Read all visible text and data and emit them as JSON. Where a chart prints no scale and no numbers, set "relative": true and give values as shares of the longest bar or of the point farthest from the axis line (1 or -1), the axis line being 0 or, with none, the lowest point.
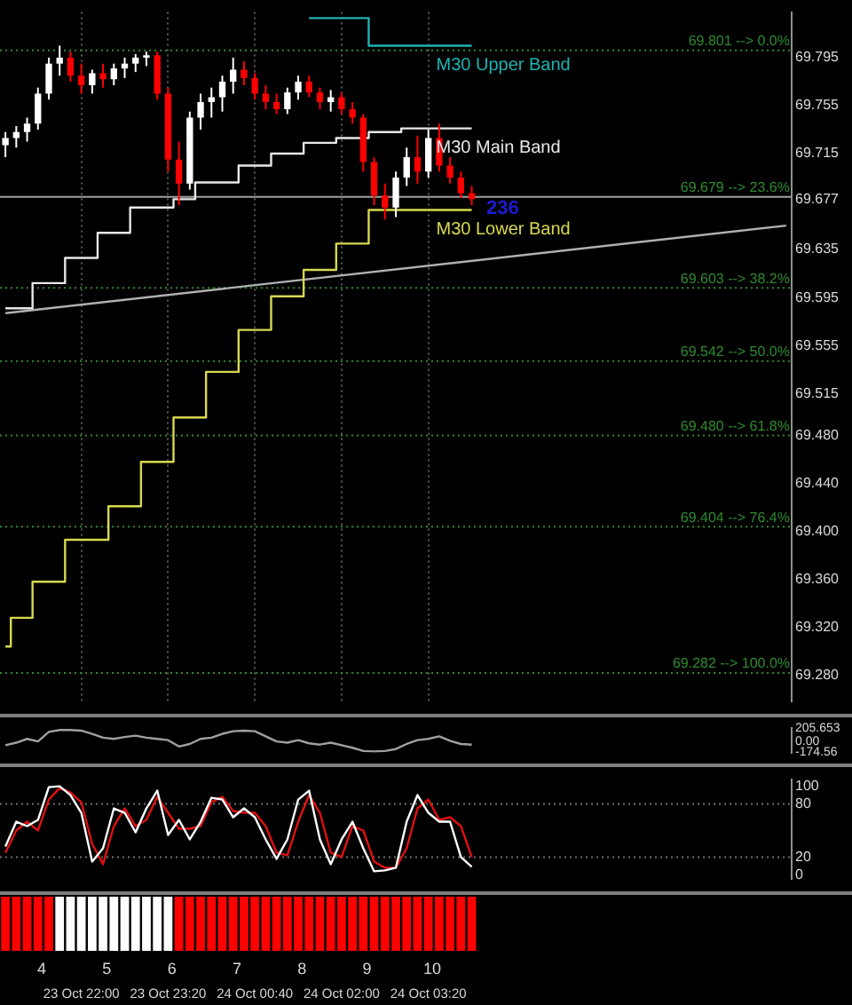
{
  "chart_data": [
    {
      "type": "candlestick",
      "tick_labels": "y",
      "legend": false,
      "grid": "x",
      "categories": [
        null,
        null,
        null,
        null,
        null,
        null,
        null,
        null,
        null,
        null,
        null,
        null,
        null,
        null,
        null,
        null,
        null,
        null,
        null,
        null,
        null,
        null,
        null,
        null,
        null,
        null,
        null,
        null,
        null,
        null,
        null,
        null,
        null,
        null,
        null,
        null,
        null,
        null,
        null,
        null,
        null,
        null,
        null,
        null,
        null,
        null,
        null,
        null,
        null,
        null,
        null,
        null,
        null,
        null,
        null,
        null,
        null,
        null,
        null,
        null,
        null,
        null,
        null,
        null,
        null,
        null,
        null,
        null,
        null,
        null,
        null,
        null,
        null
      ],
      "ohlc": [
        [
          69.722,
          69.733,
          69.712,
          69.728
        ],
        [
          69.728,
          69.738,
          69.72,
          69.733
        ],
        [
          69.733,
          69.745,
          69.725,
          69.74
        ],
        [
          69.74,
          69.77,
          69.735,
          69.765
        ],
        [
          69.765,
          69.795,
          69.76,
          69.79
        ],
        [
          69.79,
          69.805,
          69.78,
          69.795
        ],
        [
          69.795,
          69.8,
          69.775,
          69.78
        ],
        [
          69.78,
          69.79,
          69.765,
          69.772
        ],
        [
          69.772,
          69.785,
          69.765,
          69.782
        ],
        [
          69.782,
          69.79,
          69.77,
          69.777
        ],
        [
          69.777,
          69.79,
          69.772,
          69.786
        ],
        [
          69.786,
          69.795,
          69.778,
          69.79
        ],
        [
          69.79,
          69.798,
          69.783,
          69.795
        ],
        [
          69.795,
          69.8,
          69.788,
          69.797
        ],
        [
          69.797,
          69.8,
          69.76,
          69.765
        ],
        [
          69.765,
          69.77,
          69.7,
          69.71
        ],
        [
          69.71,
          69.725,
          69.672,
          69.69
        ],
        [
          69.69,
          69.75,
          69.685,
          69.745
        ],
        [
          69.745,
          69.765,
          69.735,
          69.758
        ],
        [
          69.758,
          69.77,
          69.745,
          69.762
        ],
        [
          69.762,
          69.78,
          69.75,
          69.775
        ],
        [
          69.775,
          69.795,
          69.765,
          69.785
        ],
        [
          69.785,
          69.792,
          69.772,
          69.778
        ],
        [
          69.778,
          69.782,
          69.76,
          69.765
        ],
        [
          69.765,
          69.772,
          69.752,
          69.758
        ],
        [
          69.758,
          69.765,
          69.748,
          69.752
        ],
        [
          69.752,
          69.77,
          69.748,
          69.766
        ],
        [
          69.766,
          69.78,
          69.76,
          69.775
        ],
        [
          69.775,
          69.78,
          69.762,
          69.766
        ],
        [
          69.766,
          69.77,
          69.752,
          69.758
        ],
        [
          69.758,
          69.768,
          69.75,
          69.762
        ],
        [
          69.762,
          69.766,
          69.748,
          69.752
        ],
        [
          69.752,
          69.758,
          69.74,
          69.745
        ],
        [
          69.745,
          69.748,
          69.7,
          69.708
        ],
        [
          69.708,
          69.712,
          69.672,
          69.68
        ],
        [
          69.68,
          69.69,
          69.66,
          69.67
        ],
        [
          69.67,
          69.7,
          69.662,
          69.695
        ],
        [
          69.695,
          69.72,
          69.688,
          69.712
        ],
        [
          69.712,
          69.73,
          69.69,
          69.7
        ],
        [
          69.7,
          69.735,
          69.695,
          69.728
        ],
        [
          69.728,
          69.74,
          69.7,
          69.705
        ],
        [
          69.705,
          69.712,
          69.69,
          69.695
        ],
        [
          69.695,
          69.7,
          69.678,
          69.682
        ],
        [
          69.682,
          69.688,
          69.672,
          69.677
        ],
        null,
        null,
        null,
        null,
        null,
        null,
        null,
        null,
        null,
        null,
        null,
        null,
        null,
        null,
        null,
        null,
        null,
        null,
        null,
        null,
        null,
        null,
        null,
        null,
        null,
        null,
        null,
        null,
        null
      ],
      "colors": [
        "#ffffff",
        "#ffffff",
        "#ffffff",
        "#ffffff",
        "#ffffff",
        "#ffffff",
        "#ff0000",
        "#ff0000",
        "#ffffff",
        "#ff0000",
        "#ffffff",
        "#ffffff",
        "#ffffff",
        "#ffffff",
        "#ff0000",
        "#ff0000",
        "#ff0000",
        "#ffffff",
        "#ffffff",
        "#ffffff",
        "#ffffff",
        "#ffffff",
        "#ff0000",
        "#ff0000",
        "#ff0000",
        "#ff0000",
        "#ffffff",
        "#ffffff",
        "#ff0000",
        "#ff0000",
        "#ffffff",
        "#ff0000",
        "#ff0000",
        "#ff0000",
        "#ff0000",
        "#ff0000",
        "#ffffff",
        "#ffffff",
        "#ff0000",
        "#ffffff",
        "#ff0000",
        "#ff0000",
        "#ff0000",
        "#ff0000",
        null,
        null,
        null,
        null,
        null,
        null,
        null,
        null,
        null,
        null,
        null,
        null,
        null,
        null,
        null,
        null,
        null,
        null,
        null,
        null,
        null,
        null,
        null,
        null,
        null,
        null,
        null,
        null,
        null
      ],
      "series": [
        {
          "type": "step",
          "name": "M30 Upper Band",
          "color": "#20b2b2",
          "values": [
            null,
            null,
            null,
            null,
            null,
            null,
            null,
            null,
            null,
            null,
            null,
            null,
            null,
            null,
            null,
            null,
            null,
            null,
            null,
            null,
            null,
            null,
            null,
            null,
            null,
            null,
            null,
            null,
            69.828,
            69.828,
            69.828,
            69.828,
            69.828,
            69.828,
            69.805,
            69.805,
            69.805,
            69.805,
            69.805,
            69.805,
            69.805,
            69.805,
            69.805,
            69.805,
            null,
            null,
            null,
            null,
            null,
            null,
            null,
            null,
            null,
            null,
            null,
            null,
            null,
            null,
            null,
            null,
            null,
            null,
            null,
            null,
            null,
            null,
            null,
            null,
            null,
            null,
            null,
            null,
            null
          ]
        },
        {
          "type": "step",
          "name": "M30 Main Band",
          "color": "#e8e8e8",
          "values": [
            69.586,
            69.586,
            69.586,
            69.607,
            69.607,
            69.607,
            69.628,
            69.628,
            69.628,
            69.649,
            69.649,
            69.649,
            69.67,
            69.67,
            69.67,
            69.67,
            69.677,
            69.677,
            69.691,
            69.691,
            69.691,
            69.691,
            69.705,
            69.705,
            69.705,
            69.715,
            69.715,
            69.715,
            69.724,
            69.724,
            69.724,
            69.728,
            69.728,
            69.728,
            69.733,
            69.733,
            69.733,
            69.736,
            69.736,
            69.736,
            69.736,
            69.736,
            69.736,
            69.736,
            null,
            null,
            null,
            null,
            null,
            null,
            null,
            null,
            null,
            null,
            null,
            null,
            null,
            null,
            null,
            null,
            null,
            null,
            null,
            null,
            null,
            null,
            null,
            null,
            null,
            null,
            null,
            null,
            null
          ]
        },
        {
          "type": "step",
          "name": "M30 Lower Band",
          "color": "#d8d850",
          "values": [
            69.304,
            69.328,
            69.328,
            69.358,
            69.358,
            69.358,
            69.393,
            69.393,
            69.393,
            69.393,
            69.421,
            69.421,
            69.421,
            69.458,
            69.458,
            69.458,
            69.495,
            69.495,
            69.495,
            69.533,
            69.533,
            69.533,
            69.568,
            69.568,
            69.568,
            69.596,
            69.596,
            69.596,
            69.618,
            69.618,
            69.618,
            69.64,
            69.64,
            69.64,
            69.668,
            69.668,
            69.668,
            69.668,
            69.668,
            69.668,
            69.668,
            69.668,
            69.668,
            69.668,
            null,
            null,
            null,
            null,
            null,
            null,
            null,
            null,
            null,
            null,
            null,
            null,
            null,
            null,
            null,
            null,
            null,
            null,
            null,
            null,
            null,
            null,
            null,
            null,
            null,
            null,
            null,
            null,
            null
          ]
        },
        {
          "type": "line",
          "color": "#b0b0b0",
          "values": [
            69.582,
            null,
            null,
            null,
            null,
            null,
            null,
            null,
            null,
            null,
            null,
            null,
            null,
            null,
            null,
            null,
            null,
            null,
            null,
            null,
            null,
            null,
            null,
            null,
            null,
            null,
            null,
            null,
            null,
            null,
            null,
            null,
            null,
            null,
            null,
            null,
            null,
            null,
            null,
            null,
            null,
            null,
            null,
            null,
            null,
            null,
            null,
            null,
            null,
            null,
            null,
            null,
            null,
            null,
            null,
            null,
            null,
            null,
            null,
            null,
            null,
            null,
            null,
            null,
            null,
            null,
            null,
            null,
            null,
            null,
            null,
            null,
            69.655
          ]
        }
      ],
      "ylim": [
        69.258,
        69.833
      ],
      "yticks": [
        69.795,
        69.755,
        69.715,
        69.677,
        69.635,
        69.595,
        69.555,
        69.515,
        {
          "value": 69.48,
          "label": "69.480"
        },
        {
          "value": 69.44,
          "label": "69.440"
        },
        {
          "value": 69.4,
          "label": "69.400"
        },
        {
          "value": 69.36,
          "label": "69.360"
        },
        {
          "value": 69.32,
          "label": "69.320"
        },
        {
          "value": 69.28,
          "label": "69.280"
        }
      ],
      "ref_lines": [
        {
          "axis": "y",
          "value": 69.801,
          "label": "69.801 --> 0.0%",
          "color": "#2e8b2e",
          "line_style": "dotted"
        },
        {
          "axis": "y",
          "value": 69.679,
          "label": "69.679 --> 23.6%",
          "color": "#a0a0a0",
          "line_style": "solid"
        },
        {
          "axis": "y",
          "value": 69.603,
          "label": "69.603 --> 38.2%",
          "color": "#2e8b2e",
          "line_style": "dotted"
        },
        {
          "axis": "y",
          "value": 69.542,
          "label": "69.542 --> 50.0%",
          "color": "#2e8b2e",
          "line_style": "dotted"
        },
        {
          "axis": "y",
          "value": 69.48,
          "label": "69.480 --> 61.8%",
          "color": "#2e8b2e",
          "line_style": "dotted"
        },
        {
          "axis": "y",
          "value": 69.404,
          "label": "69.404 --> 76.4%",
          "color": "#2e8b2e",
          "line_style": "dotted"
        },
        {
          "axis": "y",
          "value": 69.282,
          "label": "69.282 --> 100.0%",
          "color": "#2e8b2e",
          "line_style": "dotted"
        }
      ],
      "annotations": [
        "236"
      ]
    },
    {
      "type": "line",
      "tick_labels": "y",
      "legend": false,
      "marker": "none",
      "categories": [
        null,
        null,
        null,
        null,
        null,
        null,
        null,
        null,
        null,
        null,
        null,
        null,
        null,
        null,
        null,
        null,
        null,
        null,
        null,
        null,
        null,
        null,
        null,
        null,
        null,
        null,
        null,
        null,
        null,
        null,
        null,
        null,
        null,
        null,
        null,
        null,
        null,
        null,
        null,
        null,
        null,
        null,
        null,
        null,
        null,
        null,
        null,
        null,
        null,
        null,
        null,
        null,
        null,
        null,
        null,
        null,
        null,
        null,
        null,
        null,
        null,
        null,
        null,
        null,
        null,
        null,
        null,
        null,
        null,
        null,
        null,
        null,
        null
      ],
      "series": [
        {
          "color": "#a0a0a0",
          "values": [
            -60,
            -20,
            40,
            0,
            150,
            180,
            180,
            170,
            120,
            60,
            40,
            70,
            90,
            60,
            40,
            20,
            -80,
            -40,
            40,
            60,
            120,
            160,
            170,
            160,
            80,
            0,
            -20,
            20,
            -30,
            -50,
            -20,
            -60,
            -100,
            -150,
            -160,
            -150,
            -120,
            -40,
            20,
            40,
            80,
            10,
            -40,
            -50,
            null,
            null,
            null,
            null,
            null,
            null,
            null,
            null,
            null,
            null,
            null,
            null,
            null,
            null,
            null,
            null,
            null,
            null,
            null,
            null,
            null,
            null,
            null,
            null,
            null,
            null,
            null,
            null,
            null
          ]
        }
      ],
      "ylim": [
        -174.56,
        205.653
      ],
      "yticks": [
        205.653,
        {
          "value": 0,
          "label": "0.00"
        },
        -174.56
      ]
    },
    {
      "type": "line",
      "tick_labels": "y",
      "legend": false,
      "marker": "none",
      "categories": [
        null,
        null,
        null,
        null,
        null,
        null,
        null,
        null,
        null,
        null,
        null,
        null,
        null,
        null,
        null,
        null,
        null,
        null,
        null,
        null,
        null,
        null,
        null,
        null,
        null,
        null,
        null,
        null,
        null,
        null,
        null,
        null,
        null,
        null,
        null,
        null,
        null,
        null,
        null,
        null,
        null,
        null,
        null,
        null,
        null,
        null,
        null,
        null,
        null,
        null,
        null,
        null,
        null,
        null,
        null,
        null,
        null,
        null,
        null,
        null,
        null,
        null,
        null,
        null,
        null,
        null,
        null,
        null,
        null,
        null,
        null,
        null,
        null
      ],
      "series": [
        {
          "color": "#ffffff",
          "values": [
            32,
            60,
            55,
            62,
            99,
            100,
            90,
            70,
            15,
            30,
            75,
            70,
            48,
            75,
            95,
            45,
            62,
            40,
            60,
            87,
            85,
            65,
            75,
            65,
            40,
            18,
            40,
            85,
            95,
            40,
            12,
            40,
            60,
            30,
            4,
            5,
            8,
            60,
            90,
            70,
            60,
            60,
            20,
            9,
            null,
            null,
            null,
            null,
            null,
            null,
            null,
            null,
            null,
            null,
            null,
            null,
            null,
            null,
            null,
            null,
            null,
            null,
            null,
            null,
            null,
            null,
            null,
            null,
            null,
            null,
            null,
            null,
            null
          ]
        },
        {
          "color": "#e01010",
          "values": [
            25,
            50,
            60,
            50,
            85,
            98,
            93,
            82,
            35,
            12,
            55,
            75,
            55,
            62,
            88,
            70,
            52,
            52,
            55,
            82,
            88,
            72,
            70,
            70,
            55,
            25,
            22,
            60,
            90,
            70,
            25,
            20,
            55,
            50,
            15,
            8,
            8,
            30,
            75,
            85,
            62,
            65,
            55,
            20,
            null,
            null,
            null,
            null,
            null,
            null,
            null,
            null,
            null,
            null,
            null,
            null,
            null,
            null,
            null,
            null,
            null,
            null,
            null,
            null,
            null,
            null,
            null,
            null,
            null,
            null,
            null,
            null,
            null
          ]
        }
      ],
      "ylim": [
        -5,
        108
      ],
      "yticks": [
        100,
        80,
        20,
        0
      ],
      "ref_lines": [
        {
          "axis": "y",
          "value": 80,
          "color": "#707070",
          "line_style": "dotted"
        },
        {
          "axis": "y",
          "value": 20,
          "color": "#707070",
          "line_style": "dotted"
        }
      ]
    },
    {
      "type": "bar",
      "relative": true,
      "legend": false,
      "tick_labels": "x",
      "categories": [
        null,
        null,
        null,
        null,
        null,
        null,
        null,
        "23 Oct 22:00",
        null,
        null,
        null,
        null,
        null,
        null,
        null,
        "23 Oct 23:20",
        null,
        null,
        null,
        null,
        null,
        null,
        null,
        "24 Oct 00:40",
        null,
        null,
        null,
        null,
        null,
        null,
        null,
        "24 Oct 02:00",
        null,
        null,
        null,
        null,
        null,
        null,
        null,
        "24 Oct 03:20",
        null,
        null,
        null,
        null,
        null,
        null,
        null,
        null,
        null,
        null,
        null,
        null,
        null,
        null,
        null,
        null,
        null,
        null,
        null,
        null,
        null,
        null,
        null,
        null,
        null,
        null,
        null,
        null,
        null,
        null,
        null,
        null,
        null
      ],
      "values": [
        1,
        1,
        1,
        1,
        1,
        1,
        1,
        1,
        1,
        1,
        1,
        1,
        1,
        1,
        1,
        1,
        1,
        1,
        1,
        1,
        1,
        1,
        1,
        1,
        1,
        1,
        1,
        1,
        1,
        1,
        1,
        1,
        1,
        1,
        1,
        1,
        1,
        1,
        1,
        1,
        1,
        1,
        1,
        1,
        null,
        null,
        null,
        null,
        null,
        null,
        null,
        null,
        null,
        null,
        null,
        null,
        null,
        null,
        null,
        null,
        null,
        null,
        null,
        null,
        null,
        null,
        null,
        null,
        null,
        null,
        null,
        null,
        null
      ],
      "colors": [
        "#ff0000",
        "#ff0000",
        "#ff0000",
        "#ff0000",
        "#ff0000",
        "#ffffff",
        "#ffffff",
        "#ffffff",
        "#ffffff",
        "#ffffff",
        "#ffffff",
        "#ffffff",
        "#ffffff",
        "#ffffff",
        "#ffffff",
        "#ffffff",
        "#ff0000",
        "#ff0000",
        "#ff0000",
        "#ff0000",
        "#ff0000",
        "#ff0000",
        "#ff0000",
        "#ff0000",
        "#ff0000",
        "#ff0000",
        "#ff0000",
        "#ff0000",
        "#ff0000",
        "#ff0000",
        "#ff0000",
        "#ff0000",
        "#ff0000",
        "#ff0000",
        "#ff0000",
        "#ff0000",
        "#ff0000",
        "#ff0000",
        "#ff0000",
        "#ff0000",
        "#ff0000",
        "#ff0000",
        "#ff0000",
        "#ff0000",
        null,
        null,
        null,
        null,
        null,
        null,
        null,
        null,
        null,
        null,
        null,
        null,
        null,
        null,
        null,
        null,
        null,
        null,
        null,
        null,
        null,
        null,
        null,
        null,
        null,
        null,
        null,
        null,
        null
      ],
      "annotations": [
        "4",
        "5",
        "6",
        "7",
        "8",
        "9",
        "10"
      ]
    }
  ]
}
